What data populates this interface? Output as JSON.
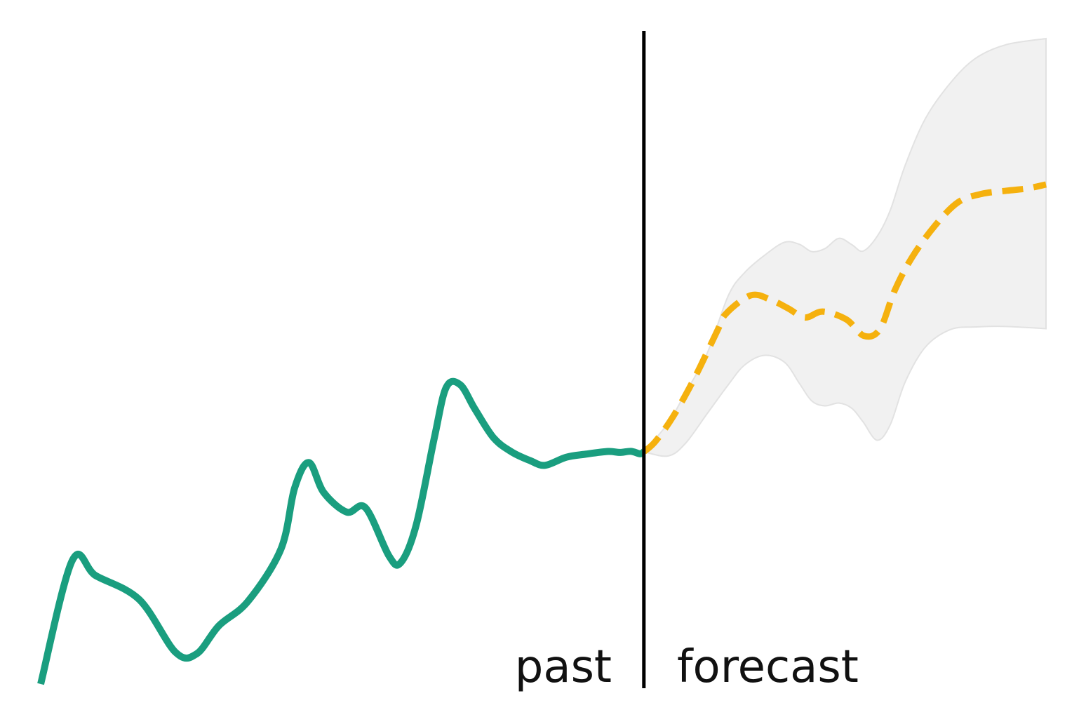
{
  "chart_data": {
    "type": "line",
    "title": "",
    "xlabel": "",
    "ylabel": "",
    "xlim": [
      0,
      100
    ],
    "ylim": [
      0,
      100
    ],
    "grid": false,
    "axes_visible": false,
    "split_x": 60,
    "region_labels": {
      "left": "past",
      "right": "forecast"
    },
    "colors": {
      "past": "#1a9e7f",
      "forecast": "#f5b10e",
      "band_fill": "#f1f1f1",
      "band_edge": "#e2e2e2",
      "divider": "#000000"
    },
    "series": [
      {
        "style": "solid",
        "x": [
          0,
          3.15,
          5.48,
          9.81,
          13.42,
          15.52,
          17.73,
          20.64,
          23.9,
          25.26,
          26.68,
          28.15,
          30.44,
          32.31,
          34.65,
          35.82,
          37.36,
          39.17,
          40.34,
          41.73,
          43.17,
          45.03,
          46.84,
          48.71,
          50.16,
          52.26,
          54.2,
          56.44,
          57.61,
          58.73,
          59.62,
          60.0
        ],
        "y": [
          0,
          19.17,
          16.78,
          13.08,
          4.9,
          4.68,
          9.04,
          12.85,
          20.92,
          30.37,
          34.31,
          29.68,
          26.64,
          27.3,
          19.83,
          18.81,
          24.68,
          38.25,
          45.97,
          46.37,
          42.66,
          38.18,
          35.97,
          34.6,
          33.88,
          35.13,
          35.61,
          36.03,
          35.88,
          36.05,
          35.67,
          35.98
        ]
      },
      {
        "style": "dashed",
        "x": [
          60.0,
          61.13,
          62.9,
          64.99,
          67.28,
          68.16,
          70.64,
          72.64,
          74.34,
          76.02,
          77.79,
          80.13,
          81.91,
          83.48,
          84.95,
          86.68,
          88.97,
          91.27,
          93.58,
          96.1,
          98.09,
          100
        ],
        "y": [
          35.98,
          37.56,
          41.43,
          47.26,
          54.65,
          57.36,
          60.22,
          59.51,
          58.21,
          56.79,
          57.7,
          56.49,
          53.93,
          54.99,
          60.98,
          66.12,
          71.05,
          74.66,
          75.93,
          76.43,
          76.77,
          77.39
        ]
      }
    ],
    "band": {
      "x": [
        60.0,
        62.4,
        64.1,
        66.3,
        68.4,
        70.0,
        72.0,
        74.0,
        75.5,
        76.7,
        78.0,
        79.4,
        80.7,
        81.8,
        83.2,
        84.5,
        86.0,
        88.0,
        90.5,
        93.0,
        96.0,
        100
      ],
      "upper": [
        35.98,
        40.4,
        45.02,
        51.26,
        60.18,
        63.71,
        66.42,
        68.45,
        68.1,
        67.0,
        67.45,
        69.05,
        68.05,
        67.07,
        69.35,
        73.37,
        80.4,
        87.6,
        93.15,
        96.95,
        99.04,
        100
      ],
      "lower": [
        35.98,
        35.33,
        37.22,
        41.9,
        46.37,
        49.4,
        50.93,
        49.84,
        46.5,
        43.86,
        43.1,
        43.53,
        42.7,
        40.62,
        37.77,
        40.15,
        46.82,
        52.2,
        54.92,
        55.32,
        55.4,
        55.06
      ]
    }
  }
}
